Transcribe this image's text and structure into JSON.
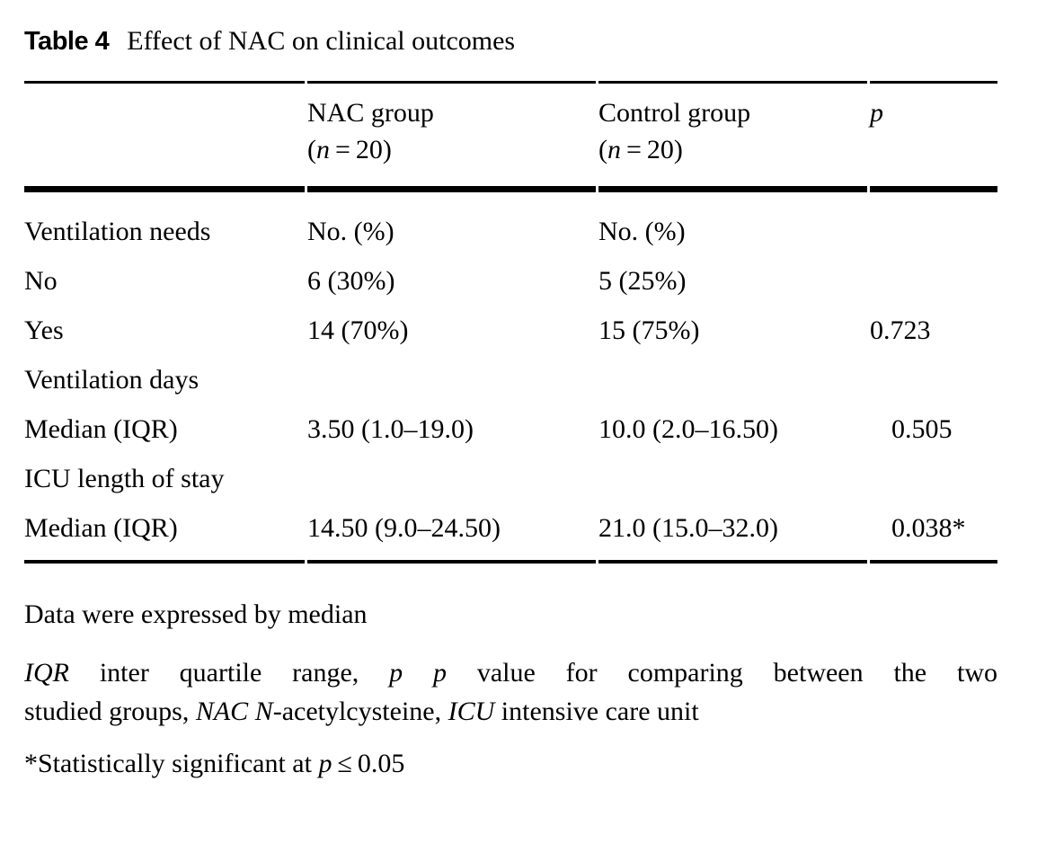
{
  "page": {
    "background": "#ffffff",
    "text_color": "#000000"
  },
  "title": {
    "label": "Table 4",
    "text": "Effect of NAC on clinical outcomes"
  },
  "table": {
    "header": {
      "nac": {
        "line1": "NAC group",
        "paren_open": "(",
        "n_var": "n",
        "paren_rest": " = 20)"
      },
      "control": {
        "line1": "Control group",
        "paren_open": "(",
        "n_var": "n",
        "paren_rest": " = 20)"
      },
      "p_label": "p"
    },
    "rows": [
      {
        "label": "Ventilation needs",
        "nac": "No. (%)",
        "control": "No. (%)",
        "p": ""
      },
      {
        "label": "No",
        "nac": "6 (30%)",
        "control": "5 (25%)",
        "p": ""
      },
      {
        "label": "Yes",
        "nac": "14 (70%)",
        "control": "15 (75%)",
        "p": "0.723"
      },
      {
        "label": "Ventilation days",
        "nac": "",
        "control": "",
        "p": ""
      },
      {
        "label": "Median (IQR)",
        "nac": "3.50 (1.0–19.0)",
        "control": "10.0 (2.0–16.50)",
        "p": "0.505"
      },
      {
        "label": "ICU length of stay",
        "nac": "",
        "control": "",
        "p": ""
      },
      {
        "label": "Median (IQR)",
        "nac": "14.50 (9.0–24.50)",
        "control": "21.0 (15.0–32.0)",
        "p": "0.038*"
      }
    ]
  },
  "footnotes": {
    "data_note": "Data were expressed by median",
    "abbrev_line1_runs": [
      {
        "text": "IQR",
        "italic": true
      },
      {
        "text": " inter quartile range, ",
        "italic": false
      },
      {
        "text": "p",
        "italic": true
      },
      {
        "text": " ",
        "italic": false
      },
      {
        "text": "p",
        "italic": true
      },
      {
        "text": " value for comparing between the two",
        "italic": false
      }
    ],
    "abbrev_line2_runs": [
      {
        "text": "studied groups, ",
        "italic": false
      },
      {
        "text": "NAC",
        "italic": true
      },
      {
        "text": " ",
        "italic": false
      },
      {
        "text": "N",
        "italic": true
      },
      {
        "text": "-acetylcysteine, ",
        "italic": false
      },
      {
        "text": "ICU",
        "italic": true
      },
      {
        "text": " intensive care unit",
        "italic": false
      }
    ],
    "significance": {
      "prefix": "*Statistically significant at ",
      "p_var": "p",
      "suffix": " ≤ 0.05"
    }
  }
}
